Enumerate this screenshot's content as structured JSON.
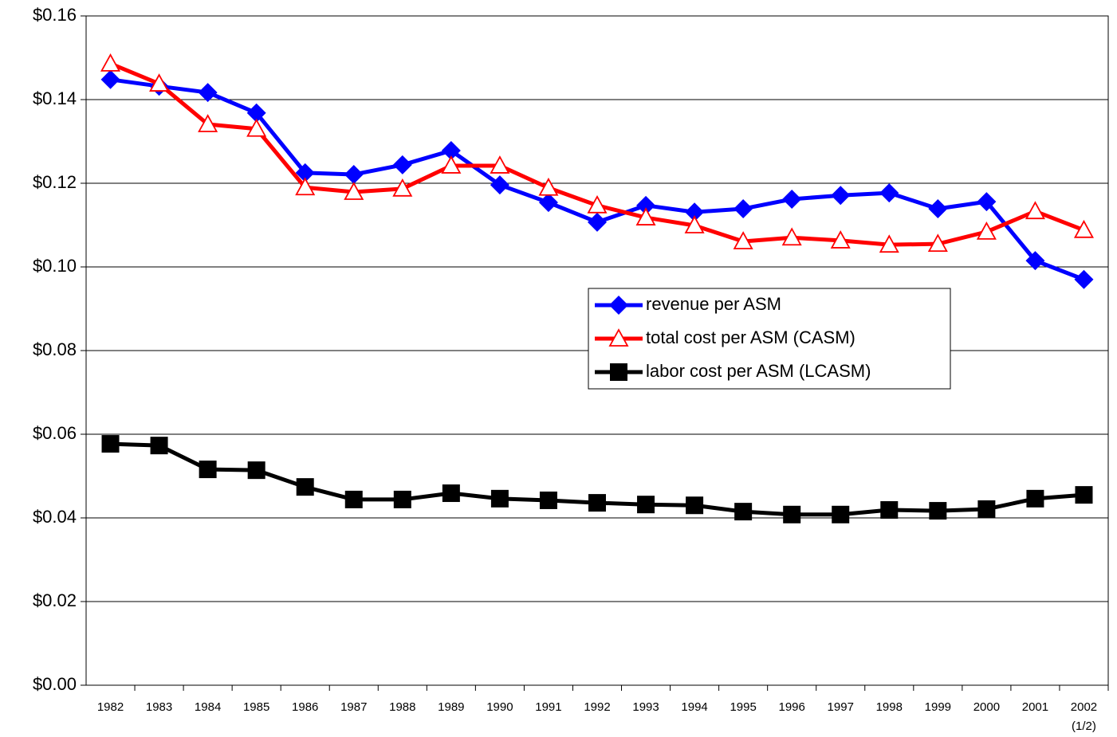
{
  "chart_data": {
    "type": "line",
    "categories": [
      "1982",
      "1983",
      "1984",
      "1985",
      "1986",
      "1987",
      "1988",
      "1989",
      "1990",
      "1991",
      "1992",
      "1993",
      "1994",
      "1995",
      "1996",
      "1997",
      "1998",
      "1999",
      "2000",
      "2001",
      "2002 (1/2)"
    ],
    "series": [
      {
        "name": "revenue per ASM",
        "color": "#0000ff",
        "marker": "diamond",
        "values": [
          0.1448,
          0.1432,
          0.1417,
          0.1368,
          0.1225,
          0.1221,
          0.1244,
          0.1278,
          0.1196,
          0.1154,
          0.1107,
          0.1147,
          0.1131,
          0.1139,
          0.1162,
          0.1171,
          0.1177,
          0.1139,
          0.1156,
          0.1015,
          0.097
        ]
      },
      {
        "name": "total cost per ASM (CASM)",
        "color": "#ff0000",
        "marker": "triangle-open",
        "values": [
          0.1486,
          0.1438,
          0.1341,
          0.133,
          0.119,
          0.1179,
          0.1187,
          0.1242,
          0.1242,
          0.1189,
          0.1147,
          0.1118,
          0.1099,
          0.1061,
          0.107,
          0.1063,
          0.1053,
          0.1055,
          0.1084,
          0.1133,
          0.1088
        ]
      },
      {
        "name": "labor cost per ASM (LCASM)",
        "color": "#000000",
        "marker": "square",
        "values": [
          0.0577,
          0.0573,
          0.0516,
          0.0514,
          0.0474,
          0.0444,
          0.0444,
          0.0459,
          0.0446,
          0.0442,
          0.0436,
          0.0432,
          0.043,
          0.0415,
          0.0408,
          0.0408,
          0.0419,
          0.0417,
          0.0421,
          0.0446,
          0.0455
        ]
      }
    ],
    "ylim": [
      0,
      0.16
    ],
    "yticks": [
      {
        "value": 0,
        "label": "$0.00"
      },
      {
        "value": 0.02,
        "label": "$0.02"
      },
      {
        "value": 0.04,
        "label": "$0.04"
      },
      {
        "value": 0.06,
        "label": "$0.06"
      },
      {
        "value": 0.08,
        "label": "$0.08"
      },
      {
        "value": 0.1,
        "label": "$0.10"
      },
      {
        "value": 0.12,
        "label": "$0.12"
      },
      {
        "value": 0.14,
        "label": "$0.14"
      },
      {
        "value": 0.16,
        "label": "$0.16"
      }
    ],
    "grid": true,
    "legend": "center-right"
  }
}
